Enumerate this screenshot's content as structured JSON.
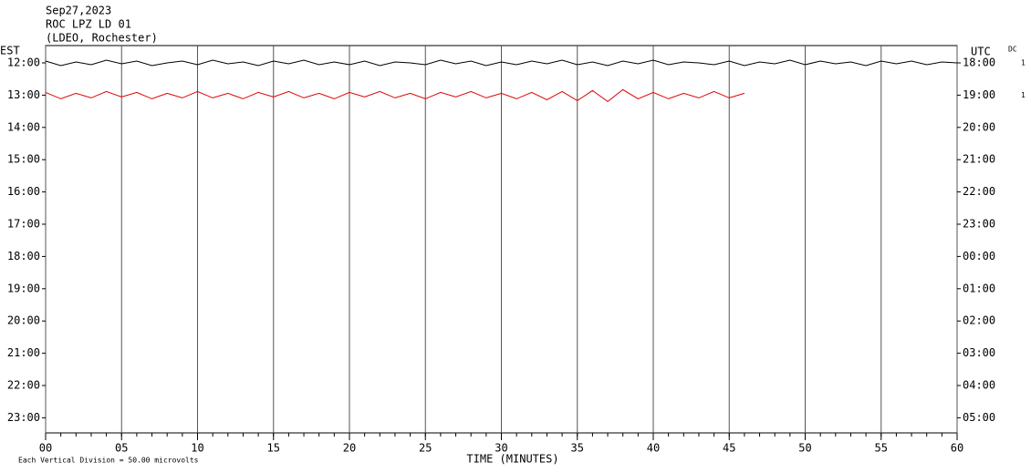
{
  "chart_data": {
    "type": "helicorder",
    "title_lines": [
      "Sep27,2023",
      "ROC LPZ LD 01",
      "(LDEO, Rochester)"
    ],
    "left_axis_label": "EST",
    "right_axis_label": "UTC",
    "dc_label": "DC",
    "left_row_labels": [
      "12:00",
      "13:00",
      "14:00",
      "15:00",
      "16:00",
      "17:00",
      "18:00",
      "19:00",
      "20:00",
      "21:00",
      "22:00",
      "23:00"
    ],
    "right_row_labels": [
      "18:00",
      "19:00",
      "20:00",
      "21:00",
      "22:00",
      "23:00",
      "00:00",
      "01:00",
      "02:00",
      "03:00",
      "04:00",
      "05:00"
    ],
    "xlabel": "TIME (MINUTES)",
    "footnote": "Each Vertical Division =   50.00 microvolts",
    "xlim": [
      0,
      60
    ],
    "xticks": [
      {
        "value": 0,
        "label": "00"
      },
      {
        "value": 5,
        "label": "05"
      },
      10,
      15,
      20,
      25,
      30,
      35,
      40,
      45,
      50,
      55,
      60
    ],
    "grid": true,
    "series": [
      {
        "row": 0,
        "color": "#000000",
        "label": "1",
        "x": [
          0,
          1,
          2,
          3,
          4,
          5,
          6,
          7,
          8,
          9,
          10,
          11,
          12,
          13,
          14,
          15,
          16,
          17,
          18,
          19,
          20,
          21,
          22,
          23,
          24,
          25,
          26,
          27,
          28,
          29,
          30,
          31,
          32,
          33,
          34,
          35,
          36,
          37,
          38,
          39,
          40,
          41,
          42,
          43,
          44,
          45,
          46,
          47,
          48,
          49,
          50,
          51,
          52,
          53,
          54,
          55,
          56,
          57,
          58,
          59,
          60
        ],
        "values": [
          2,
          -3,
          1,
          -2,
          3,
          -1,
          2,
          -3,
          0,
          2,
          -2,
          3,
          -1,
          1,
          -3,
          2,
          -1,
          3,
          -2,
          1,
          -2,
          2,
          -3,
          1,
          0,
          -2,
          3,
          -1,
          2,
          -3,
          1,
          -2,
          2,
          -1,
          3,
          -2,
          1,
          -3,
          2,
          -1,
          3,
          -2,
          1,
          0,
          -2,
          2,
          -3,
          1,
          -1,
          3,
          -2,
          2,
          -1,
          1,
          -3,
          2,
          -1,
          2,
          -2,
          1,
          0
        ]
      },
      {
        "row": 1,
        "color": "#dd0000",
        "label": "1",
        "x": [
          0,
          1,
          2,
          3,
          4,
          5,
          6,
          7,
          8,
          9,
          10,
          11,
          12,
          13,
          14,
          15,
          16,
          17,
          18,
          19,
          20,
          21,
          22,
          23,
          24,
          25,
          26,
          27,
          28,
          29,
          30,
          31,
          32,
          33,
          34,
          35,
          36,
          37,
          38,
          39,
          40,
          41,
          42,
          43,
          44,
          45,
          46
        ],
        "values": [
          3,
          -4,
          2,
          -3,
          4,
          -2,
          3,
          -4,
          2,
          -3,
          4,
          -3,
          2,
          -4,
          3,
          -2,
          4,
          -3,
          2,
          -4,
          3,
          -2,
          4,
          -3,
          2,
          -4,
          3,
          -2,
          4,
          -3,
          2,
          -4,
          3,
          -5,
          4,
          -6,
          5,
          -7,
          6,
          -4,
          3,
          -4,
          2,
          -3,
          4,
          -3,
          2
        ]
      }
    ]
  }
}
